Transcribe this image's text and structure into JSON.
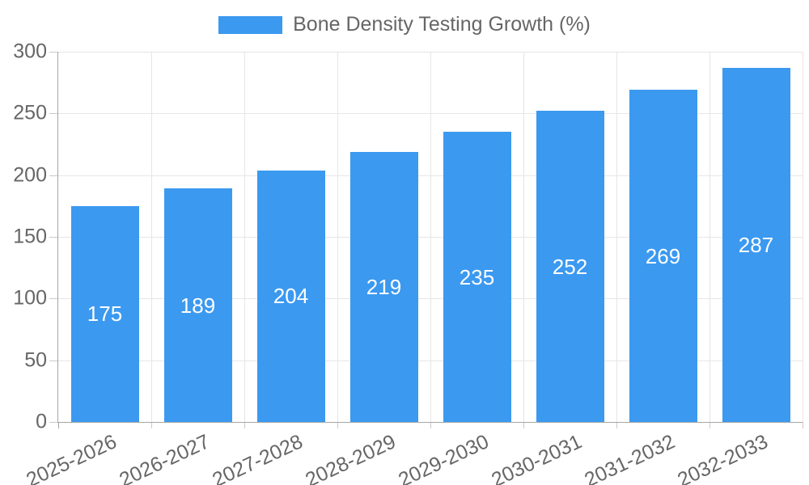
{
  "colors": {
    "bar": "#3b99f0",
    "grid": "#e6e6e6",
    "tick": "#c9c9c9",
    "axis": "#a6a6a6",
    "tick_text": "#666666",
    "bar_label_text": "#ffffff"
  },
  "chart_data": {
    "type": "bar",
    "title": "Bone Density Testing Growth (%)",
    "categories": [
      "2025-2026",
      "2026-2027",
      "2027-2028",
      "2028-2029",
      "2029-2030",
      "2030-2031",
      "2031-2032",
      "2032-2033"
    ],
    "values": [
      175,
      189,
      204,
      219,
      235,
      252,
      269,
      287
    ],
    "xlabel": "",
    "ylabel": "",
    "ylim": [
      0,
      300
    ],
    "yticks": [
      0,
      50,
      100,
      150,
      200,
      250,
      300
    ],
    "grid": true,
    "legend_position": "top",
    "bar_labels": "inside-middle",
    "x_label_rotation_deg": -25
  }
}
